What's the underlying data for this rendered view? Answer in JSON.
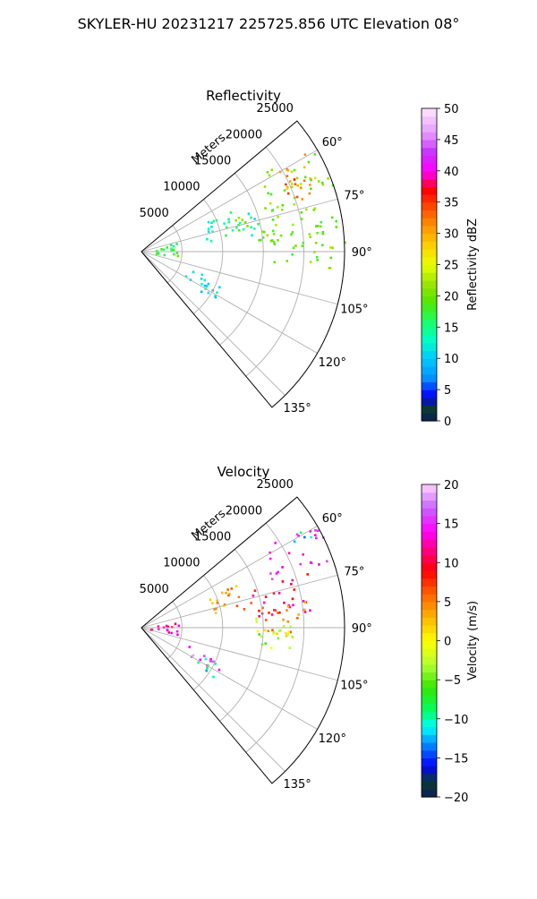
{
  "page": {
    "title": "SKYLER-HU  20231217  225725.856 UTC Elevation 08°"
  },
  "colors": {
    "grid": "#b0b0b0",
    "axis": "#000000",
    "background": "#ffffff"
  },
  "chart_data": [
    {
      "type": "polar-sector",
      "title": "Reflectivity",
      "radial_axis_label": "Meters",
      "radial_ticks": [
        "5000",
        "10000",
        "15000",
        "20000",
        "25000"
      ],
      "radial_tick_values": [
        5000,
        10000,
        15000,
        20000,
        25000
      ],
      "radial_range": [
        0,
        25000
      ],
      "angular_ticks": [
        "60°",
        "75°",
        "90°",
        "105°",
        "120°",
        "135°"
      ],
      "angular_tick_values": [
        60,
        75,
        90,
        105,
        120,
        135
      ],
      "angular_range_deg": [
        50,
        140
      ],
      "grid": true,
      "colorbar": {
        "label": "Reflectivity dBZ",
        "min": 0,
        "max": 50,
        "ticks": [
          "0",
          "5",
          "10",
          "15",
          "20",
          "25",
          "30",
          "35",
          "40",
          "45",
          "50"
        ],
        "stops": [
          {
            "v": 0,
            "c": "#0b1f55"
          },
          {
            "v": 2,
            "c": "#0b3a30"
          },
          {
            "v": 4,
            "c": "#0000ff"
          },
          {
            "v": 7,
            "c": "#0096ff"
          },
          {
            "v": 10,
            "c": "#00c8ff"
          },
          {
            "v": 13,
            "c": "#00ffc8"
          },
          {
            "v": 16,
            "c": "#1eff64"
          },
          {
            "v": 19,
            "c": "#50e600"
          },
          {
            "v": 22,
            "c": "#9be600"
          },
          {
            "v": 25,
            "c": "#e6ff00"
          },
          {
            "v": 28,
            "c": "#ffd200"
          },
          {
            "v": 31,
            "c": "#ff9600"
          },
          {
            "v": 34,
            "c": "#ff5000"
          },
          {
            "v": 37,
            "c": "#ff0000"
          },
          {
            "v": 40,
            "c": "#ff00ff"
          },
          {
            "v": 43,
            "c": "#c832ff"
          },
          {
            "v": 46,
            "c": "#e696ff"
          },
          {
            "v": 50,
            "c": "#ffe6ff"
          }
        ]
      },
      "echo_regions": [
        {
          "az": [
            57,
            68
          ],
          "r": [
            18500,
            24000
          ],
          "value": 30
        },
        {
          "az": [
            62,
            72
          ],
          "r": [
            19000,
            23000
          ],
          "value": 34
        },
        {
          "az": [
            57,
            95
          ],
          "r": [
            16000,
            25000
          ],
          "value": 20
        },
        {
          "az": [
            70,
            85
          ],
          "r": [
            12000,
            18000
          ],
          "value": 19
        },
        {
          "az": [
            65,
            82
          ],
          "r": [
            8000,
            15000
          ],
          "value": 14
        },
        {
          "az": [
            75,
            97
          ],
          "r": [
            1000,
            4500
          ],
          "value": 17
        },
        {
          "az": [
            110,
            120
          ],
          "r": [
            6000,
            11000
          ],
          "value": 13
        },
        {
          "az": [
            115,
            125
          ],
          "r": [
            8000,
            11000
          ],
          "value": 11
        }
      ]
    },
    {
      "type": "polar-sector",
      "title": "Velocity",
      "radial_axis_label": "Meters",
      "radial_ticks": [
        "5000",
        "10000",
        "15000",
        "20000",
        "25000"
      ],
      "radial_tick_values": [
        5000,
        10000,
        15000,
        20000,
        25000
      ],
      "radial_range": [
        0,
        25000
      ],
      "angular_ticks": [
        "60°",
        "75°",
        "90°",
        "105°",
        "120°",
        "135°"
      ],
      "angular_tick_values": [
        60,
        75,
        90,
        105,
        120,
        135
      ],
      "angular_range_deg": [
        50,
        140
      ],
      "grid": true,
      "colorbar": {
        "label": "Velocity (m/s)",
        "min": -20,
        "max": 20,
        "ticks": [
          "−20",
          "−15",
          "−10",
          "−5",
          "0",
          "5",
          "10",
          "15",
          "20"
        ],
        "stops": [
          {
            "v": -20,
            "c": "#0b1f55"
          },
          {
            "v": -18,
            "c": "#0b3a30"
          },
          {
            "v": -16,
            "c": "#0000ff"
          },
          {
            "v": -13,
            "c": "#0096ff"
          },
          {
            "v": -11,
            "c": "#00ffff"
          },
          {
            "v": -9,
            "c": "#00ff64"
          },
          {
            "v": -6,
            "c": "#32e600"
          },
          {
            "v": -3,
            "c": "#b4ff32"
          },
          {
            "v": 0,
            "c": "#ffff00"
          },
          {
            "v": 3,
            "c": "#ffb400"
          },
          {
            "v": 6,
            "c": "#ff6400"
          },
          {
            "v": 9,
            "c": "#ff0000"
          },
          {
            "v": 12,
            "c": "#ff0096"
          },
          {
            "v": 14,
            "c": "#ff00ff"
          },
          {
            "v": 17,
            "c": "#c864ff"
          },
          {
            "v": 20,
            "c": "#ffd2ff"
          }
        ]
      },
      "echo_regions": [
        {
          "az": [
            57,
            70
          ],
          "r": [
            17000,
            25000
          ],
          "value": 14
        },
        {
          "az": [
            57,
            62
          ],
          "r": [
            20000,
            24000
          ],
          "value": -12
        },
        {
          "az": [
            70,
            85
          ],
          "r": [
            14000,
            22000
          ],
          "value": 10
        },
        {
          "az": [
            80,
            92
          ],
          "r": [
            15000,
            21000
          ],
          "value": 6
        },
        {
          "az": [
            85,
            97
          ],
          "r": [
            14000,
            19000
          ],
          "value": 0
        },
        {
          "az": [
            90,
            100
          ],
          "r": [
            14000,
            19000
          ],
          "value": -3
        },
        {
          "az": [
            65,
            80
          ],
          "r": [
            8000,
            14000
          ],
          "value": 4
        },
        {
          "az": [
            80,
            100
          ],
          "r": [
            1000,
            4500
          ],
          "value": 12
        },
        {
          "az": [
            110,
            120
          ],
          "r": [
            6000,
            11000
          ],
          "value": 16
        },
        {
          "az": [
            115,
            125
          ],
          "r": [
            8000,
            11000
          ],
          "value": -10
        }
      ]
    }
  ]
}
